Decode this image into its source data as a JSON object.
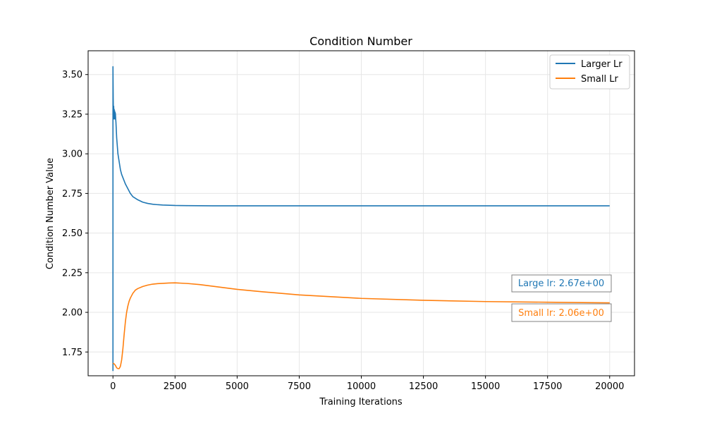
{
  "chart_data": {
    "type": "line",
    "title": "Condition Number",
    "xlabel": "Training Iterations",
    "ylabel": "Condition Number Value",
    "xlim": [
      -1000,
      21000
    ],
    "ylim": [
      1.6,
      3.65
    ],
    "xticks": [
      0,
      2500,
      5000,
      7500,
      10000,
      12500,
      15000,
      17500,
      20000
    ],
    "yticks": [
      1.75,
      2.0,
      2.25,
      2.5,
      2.75,
      3.0,
      3.25,
      3.5
    ],
    "xtick_labels": [
      "0",
      "2500",
      "5000",
      "7500",
      "10000",
      "12500",
      "15000",
      "17500",
      "20000"
    ],
    "ytick_labels": [
      "1.75",
      "2.00",
      "2.25",
      "2.50",
      "2.75",
      "3.00",
      "3.25",
      "3.50"
    ],
    "grid": true,
    "legend": "top-right",
    "series": [
      {
        "name": "Larger Lr",
        "color": "#1f77b4",
        "x": [
          0,
          0,
          10,
          20,
          30,
          40,
          50,
          60,
          70,
          80,
          90,
          100,
          110,
          120,
          150,
          200,
          250,
          300,
          350,
          400,
          500,
          600,
          700,
          800,
          900,
          1000,
          1200,
          1400,
          1600,
          1800,
          2000,
          2500,
          3000,
          4000,
          5000,
          7500,
          10000,
          15000,
          20000
        ],
        "y": [
          1.63,
          3.55,
          3.35,
          3.25,
          3.3,
          3.22,
          3.28,
          3.25,
          3.27,
          3.22,
          3.26,
          3.25,
          3.22,
          3.2,
          3.1,
          3.0,
          2.95,
          2.9,
          2.87,
          2.85,
          2.81,
          2.78,
          2.75,
          2.73,
          2.72,
          2.71,
          2.695,
          2.687,
          2.682,
          2.679,
          2.677,
          2.674,
          2.673,
          2.672,
          2.672,
          2.672,
          2.672,
          2.672,
          2.672
        ]
      },
      {
        "name": "Small Lr",
        "color": "#ff7f0e",
        "x": [
          0,
          50,
          100,
          150,
          200,
          250,
          300,
          350,
          400,
          450,
          500,
          550,
          600,
          650,
          700,
          750,
          800,
          900,
          1000,
          1200,
          1400,
          1600,
          1800,
          2000,
          2250,
          2500,
          3000,
          3500,
          4000,
          4500,
          5000,
          6000,
          7500,
          10000,
          12500,
          15000,
          17500,
          20000
        ],
        "y": [
          1.68,
          1.675,
          1.665,
          1.65,
          1.645,
          1.645,
          1.66,
          1.7,
          1.77,
          1.86,
          1.94,
          2.0,
          2.04,
          2.07,
          2.09,
          2.105,
          2.12,
          2.14,
          2.15,
          2.163,
          2.172,
          2.178,
          2.181,
          2.183,
          2.185,
          2.186,
          2.182,
          2.175,
          2.165,
          2.155,
          2.145,
          2.13,
          2.11,
          2.088,
          2.076,
          2.068,
          2.064,
          2.06
        ]
      }
    ],
    "annotations": [
      {
        "text": "Large lr: 2.67e+00",
        "color": "#1f77b4"
      },
      {
        "text": "Small lr: 2.06e+00",
        "color": "#ff7f0e"
      }
    ]
  }
}
